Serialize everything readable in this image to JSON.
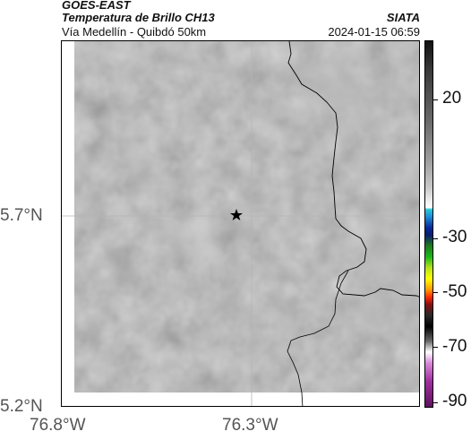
{
  "header": {
    "satellite": "GOES-EAST",
    "product": "Temperatura de Brillo CH13",
    "route": "Vía Medellín - Quibdó 50km",
    "org": "SIATA",
    "datetime": "2024-01-15 06:59"
  },
  "axes": {
    "lat_labels": [
      "5.7°N",
      "5.2°N"
    ],
    "lon_labels": [
      "76.8°W",
      "76.3°W"
    ]
  },
  "colorbar": {
    "labels": [
      "20",
      "-30",
      "-50",
      "-70",
      "-90"
    ]
  },
  "marker": {
    "icon": "star-icon"
  },
  "colors": {
    "map_base": "#7a7a7a",
    "border_line": "#000000"
  }
}
